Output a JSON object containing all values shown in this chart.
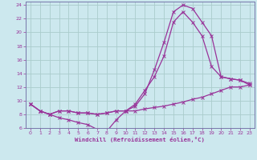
{
  "xlabel": "Windchill (Refroidissement éolien,°C)",
  "background_color": "#cce8ee",
  "grid_color": "#aacccc",
  "line_color": "#993399",
  "spine_color": "#7777aa",
  "xlim": [
    -0.5,
    23.5
  ],
  "ylim": [
    6,
    24.5
  ],
  "yticks": [
    6,
    8,
    10,
    12,
    14,
    16,
    18,
    20,
    22,
    24
  ],
  "xticks": [
    0,
    1,
    2,
    3,
    4,
    5,
    6,
    7,
    8,
    9,
    10,
    11,
    12,
    13,
    14,
    15,
    16,
    17,
    18,
    19,
    20,
    21,
    22,
    23
  ],
  "curve1_x": [
    0,
    1,
    2,
    3,
    4,
    5,
    6,
    7,
    8,
    9,
    10,
    11,
    12,
    13,
    14,
    15,
    16,
    17,
    18,
    19,
    20,
    21,
    22,
    23
  ],
  "curve1_y": [
    9.5,
    8.5,
    8.0,
    7.5,
    7.2,
    6.8,
    6.5,
    5.8,
    5.5,
    7.2,
    8.5,
    9.2,
    11.0,
    14.5,
    18.5,
    23.0,
    24.0,
    23.5,
    21.5,
    19.5,
    13.5,
    13.2,
    13.0,
    12.5
  ],
  "curve2_x": [
    0,
    1,
    2,
    3,
    4,
    5,
    6,
    7,
    8,
    9,
    10,
    11,
    12,
    13,
    14,
    15,
    16,
    17,
    18,
    19,
    20,
    21,
    22,
    23
  ],
  "curve2_y": [
    9.5,
    8.5,
    8.0,
    8.5,
    8.5,
    8.2,
    8.2,
    8.0,
    8.2,
    8.5,
    8.5,
    8.5,
    8.8,
    9.0,
    9.2,
    9.5,
    9.8,
    10.2,
    10.5,
    11.0,
    11.5,
    12.0,
    12.0,
    12.3
  ],
  "curve3_x": [
    0,
    1,
    2,
    3,
    4,
    5,
    6,
    7,
    8,
    9,
    10,
    11,
    12,
    13,
    14,
    15,
    16,
    17,
    18,
    19,
    20,
    21,
    22,
    23
  ],
  "curve3_y": [
    9.5,
    8.5,
    8.0,
    8.5,
    8.5,
    8.2,
    8.2,
    8.0,
    8.2,
    8.5,
    8.5,
    9.5,
    11.5,
    13.5,
    16.5,
    21.5,
    23.0,
    21.5,
    19.5,
    15.0,
    13.5,
    13.2,
    13.0,
    12.3
  ]
}
